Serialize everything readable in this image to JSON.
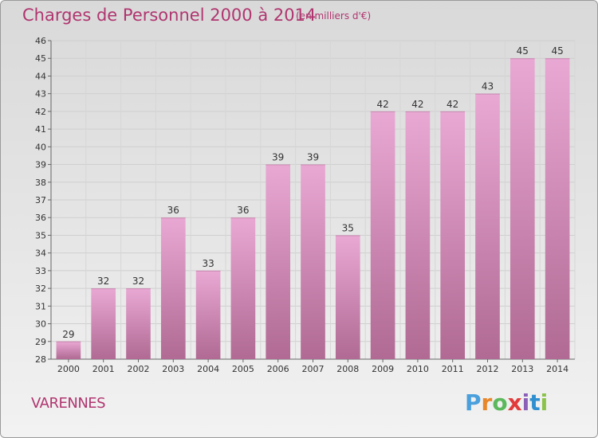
{
  "header": {
    "title": "Charges de Personnel 2000 à 2014",
    "unit": "(en milliers d'€)"
  },
  "footer": {
    "city": "VARENNES",
    "logo": [
      "P",
      "r",
      "o",
      "x",
      "i",
      "t",
      "i"
    ],
    "logo_colors": [
      "#4aa0dc",
      "#e8862a",
      "#5cb85c",
      "#e23b3b",
      "#8b5fb7",
      "#2f8fd0",
      "#8bc34a"
    ]
  },
  "colors": {
    "title": "#b0356f",
    "bar_top": "#e9a8d4",
    "bar_bottom": "#b06a93"
  },
  "chart_data": {
    "type": "bar",
    "title": "Charges de Personnel 2000 à 2014",
    "categories": [
      "2000",
      "2001",
      "2002",
      "2003",
      "2004",
      "2005",
      "2006",
      "2007",
      "2008",
      "2009",
      "2010",
      "2011",
      "2012",
      "2013",
      "2014"
    ],
    "values": [
      29,
      32,
      32,
      36,
      33,
      36,
      39,
      39,
      35,
      42,
      42,
      42,
      43,
      45,
      45
    ],
    "ylim": [
      28,
      46
    ],
    "yticks": [
      28,
      29,
      30,
      31,
      32,
      33,
      34,
      35,
      36,
      37,
      38,
      39,
      40,
      41,
      42,
      43,
      44,
      45,
      46
    ],
    "grid": true,
    "data_labels": true
  }
}
